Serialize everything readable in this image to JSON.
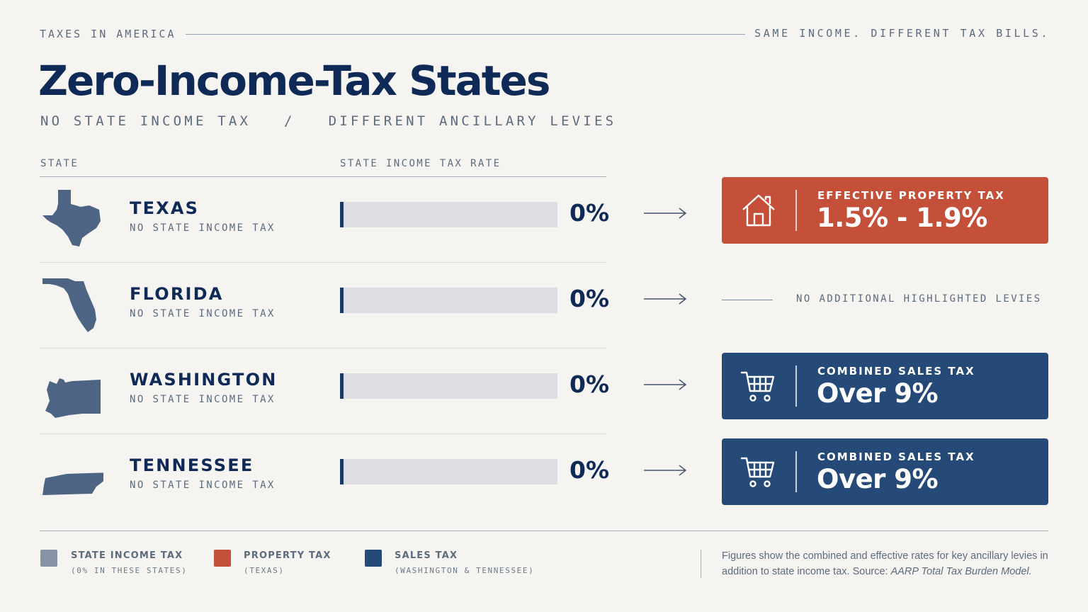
{
  "header": {
    "kicker": "TAXES IN AMERICA",
    "tagline": "SAME INCOME. DIFFERENT TAX BILLS.",
    "title": "Zero-Income-Tax States",
    "subtitle": "NO STATE INCOME TAX   /   DIFFERENT ANCILLARY LEVIES"
  },
  "columns": {
    "state": "STATE",
    "rate": "STATE INCOME TAX RATE"
  },
  "chart_data": {
    "type": "bar",
    "orientation": "horizontal",
    "categories": [
      "TEXAS",
      "FLORIDA",
      "WASHINGTON",
      "TENNESSEE"
    ],
    "values": [
      0,
      0,
      0,
      0
    ],
    "value_labels": [
      "0%",
      "0%",
      "0%",
      "0%"
    ],
    "xlim": [
      0,
      100
    ]
  },
  "rows": [
    {
      "state": "TEXAS",
      "sub": "NO STATE INCOME TAX",
      "rate_label": "0%",
      "rate": 0,
      "shape_icon": "texas-shape",
      "levy": {
        "kind": "property",
        "icon": "house-icon",
        "label": "EFFECTIVE PROPERTY TAX",
        "value": "1.5% - 1.9%"
      }
    },
    {
      "state": "FLORIDA",
      "sub": "NO STATE INCOME TAX",
      "rate_label": "0%",
      "rate": 0,
      "shape_icon": "florida-shape",
      "levy": {
        "kind": "none",
        "label": "NO ADDITIONAL HIGHLIGHTED LEVIES"
      }
    },
    {
      "state": "WASHINGTON",
      "sub": "NO STATE INCOME TAX",
      "rate_label": "0%",
      "rate": 0,
      "shape_icon": "washington-shape",
      "levy": {
        "kind": "sales",
        "icon": "cart-icon",
        "label": "COMBINED SALES TAX",
        "value": "Over 9%"
      }
    },
    {
      "state": "TENNESSEE",
      "sub": "NO STATE INCOME TAX",
      "rate_label": "0%",
      "rate": 0,
      "shape_icon": "tennessee-shape",
      "levy": {
        "kind": "sales",
        "icon": "cart-icon",
        "label": "COMBINED SALES TAX",
        "value": "Over 9%"
      }
    }
  ],
  "legend": [
    {
      "label": "STATE INCOME TAX",
      "sub": "(0% IN THESE STATES)",
      "color": "#8794a5"
    },
    {
      "label": "PROPERTY TAX",
      "sub": "(TEXAS)",
      "color": "#c4503a"
    },
    {
      "label": "SALES TAX",
      "sub": "(WASHINGTON & TENNESSEE)",
      "color": "#254a77"
    }
  ],
  "footnote": {
    "text": "Figures show the combined and effective rates for key ancillary levies in addition to state income tax. Source: ",
    "source": "AARP Total Tax Burden Model."
  },
  "colors": {
    "navy": "#0f2a56",
    "property": "#c4503a",
    "sales": "#254a77",
    "muted": "#5d6b7e"
  }
}
